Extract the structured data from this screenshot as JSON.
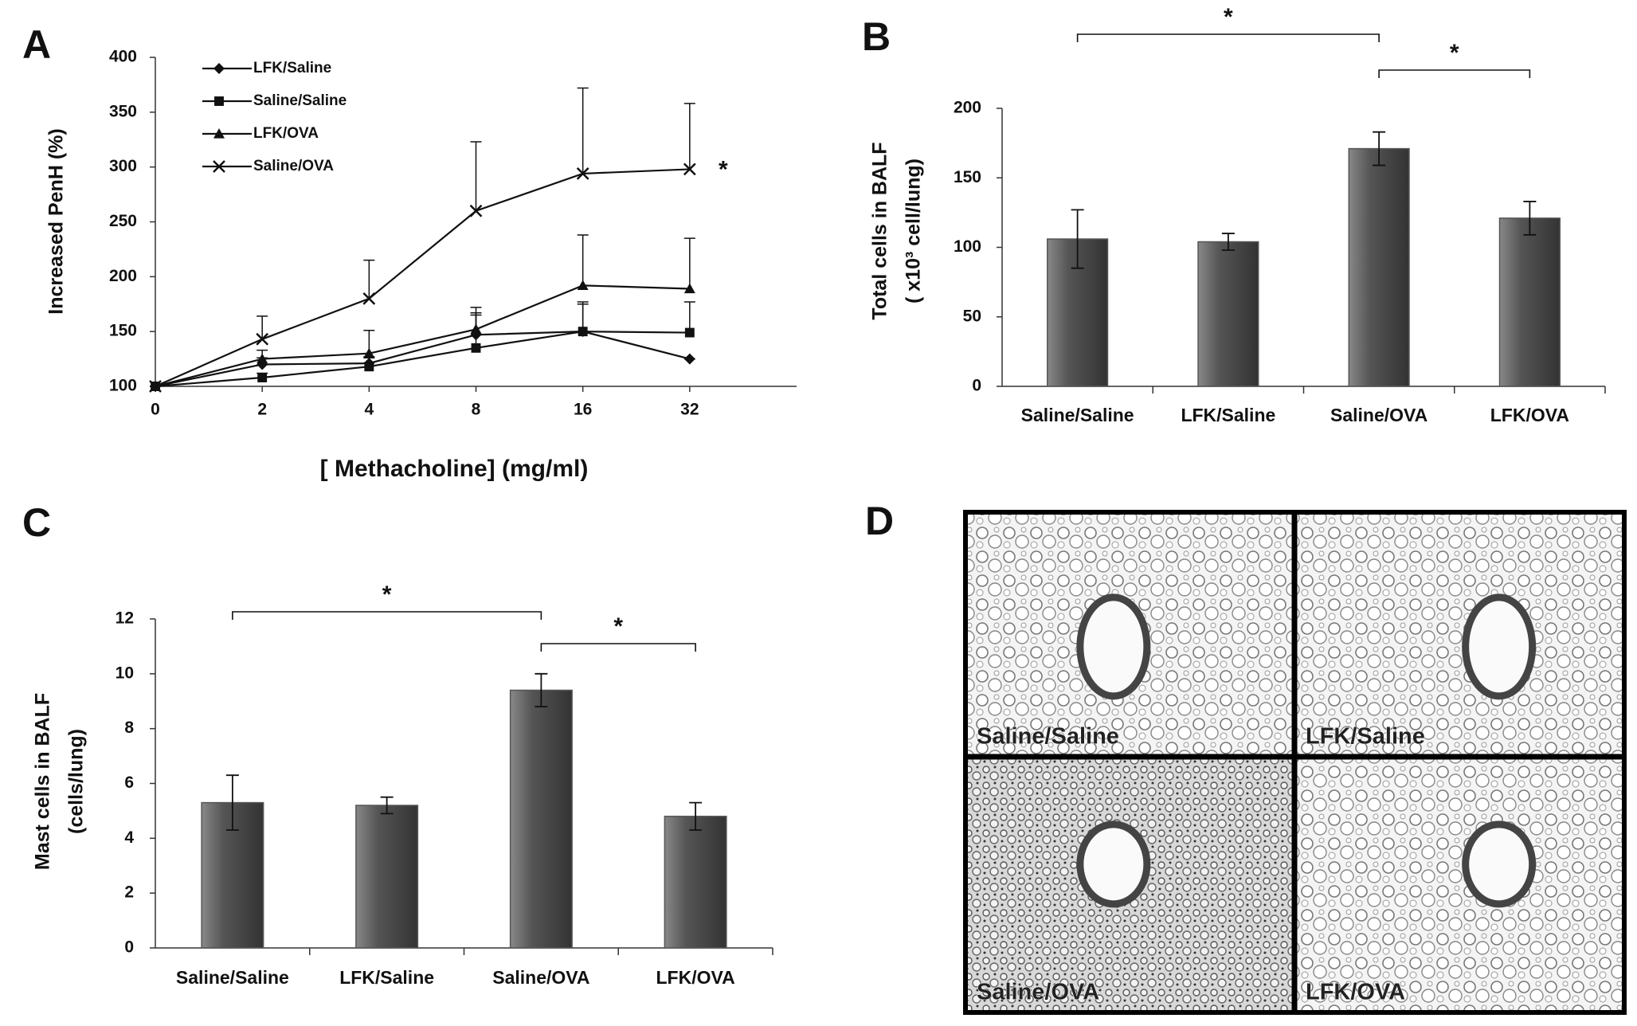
{
  "chart_data": [
    {
      "type": "line",
      "panel": "A",
      "x_label": "[ Methacholine]  (mg/ml)",
      "y_label": [
        "Increased PenH (%)"
      ],
      "categories": [
        "0",
        "2",
        "4",
        "8",
        "16",
        "32"
      ],
      "ylim": [
        100,
        400
      ],
      "yticks": [
        100,
        150,
        200,
        250,
        300,
        350,
        400
      ],
      "series": [
        {
          "name": "LFK/Saline",
          "color": "#111111",
          "marker": "diamond",
          "values": [
            100,
            120,
            121,
            147,
            150,
            125
          ],
          "errors": [
            0,
            6,
            6,
            20,
            25,
            0
          ]
        },
        {
          "name": "Saline/Saline",
          "color": "#111111",
          "marker": "square",
          "values": [
            100,
            108,
            118,
            135,
            150,
            149
          ],
          "errors": [
            0,
            4,
            8,
            30,
            27,
            28
          ]
        },
        {
          "name": "LFK/OVA",
          "color": "#111111",
          "marker": "triangle",
          "values": [
            100,
            125,
            130,
            152,
            192,
            189
          ],
          "errors": [
            0,
            8,
            21,
            20,
            46,
            46
          ]
        },
        {
          "name": "Saline/OVA",
          "color": "#111111",
          "marker": "x",
          "values": [
            100,
            143,
            180,
            260,
            294,
            298
          ],
          "errors": [
            0,
            21,
            35,
            63,
            78,
            60
          ],
          "end_label": "*"
        }
      ]
    },
    {
      "type": "bar",
      "panel": "B",
      "y_label": [
        "Total cells  in BALF",
        "( x10³ cell/lung)"
      ],
      "categories": [
        "Saline/Saline",
        "LFK/Saline",
        "Saline/OVA",
        "LFK/OVA"
      ],
      "values": [
        106,
        104,
        171,
        121
      ],
      "errors": [
        21,
        6,
        12,
        12
      ],
      "color": "#555555",
      "ylim": [
        0,
        200
      ],
      "yticks": [
        0,
        50,
        100,
        150,
        200
      ],
      "significance": [
        {
          "label": "*",
          "between": [
            0,
            2
          ]
        },
        {
          "label": "*",
          "between": [
            2,
            3
          ]
        }
      ]
    },
    {
      "type": "bar",
      "panel": "C",
      "y_label": [
        "Mast cells in BALF",
        "(cells/lung)"
      ],
      "categories": [
        "Saline/Saline",
        "LFK/Saline",
        "Saline/OVA",
        "LFK/OVA"
      ],
      "values": [
        5.3,
        5.2,
        9.4,
        4.8
      ],
      "errors": [
        1.0,
        0.3,
        0.6,
        0.5
      ],
      "color": "#555555",
      "ylim": [
        0,
        12
      ],
      "yticks": [
        0,
        2,
        4,
        6,
        8,
        10,
        12
      ],
      "significance": [
        {
          "label": "*",
          "between": [
            0,
            2
          ]
        },
        {
          "label": "*",
          "between": [
            2,
            3
          ]
        }
      ]
    }
  ],
  "micrographs": {
    "panel": "D",
    "labels": [
      "Saline/Saline",
      "LFK/Saline",
      "Saline/OVA",
      "LFK/OVA"
    ]
  }
}
